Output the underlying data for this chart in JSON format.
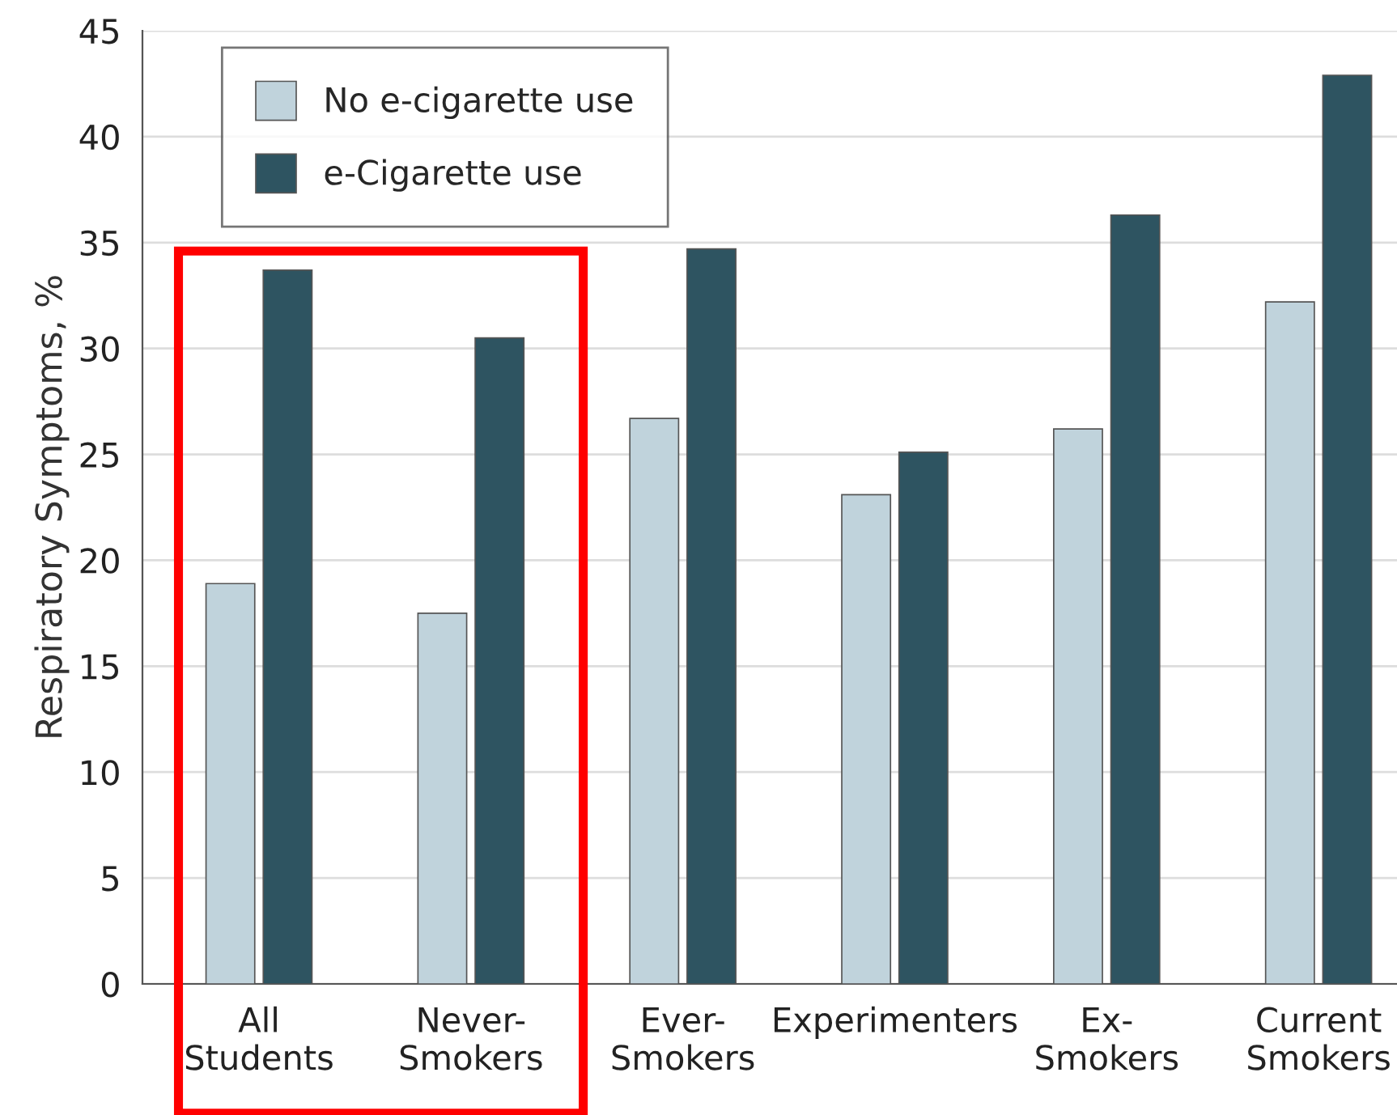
{
  "chart_data": {
    "type": "bar",
    "ylabel": "Respiratory Symptoms, %",
    "categories": [
      "All\nStudents",
      "Never-\nSmokers",
      "Ever-\nSmokers",
      "Experimenters",
      "Ex-\nSmokers",
      "Current\nSmokers"
    ],
    "series": [
      {
        "name": "No e-cigarette use",
        "color": "#c0d3dc",
        "values": [
          18.9,
          17.5,
          26.7,
          23.1,
          26.2,
          32.2
        ]
      },
      {
        "name": "e-Cigarette use",
        "color": "#2e5461",
        "values": [
          33.7,
          30.5,
          34.7,
          25.1,
          36.3,
          42.9
        ]
      }
    ],
    "ylim": [
      0,
      45
    ],
    "yticks": [
      0,
      5,
      10,
      15,
      20,
      25,
      30,
      35,
      40,
      45
    ],
    "grid": "y",
    "legend": "top left"
  }
}
